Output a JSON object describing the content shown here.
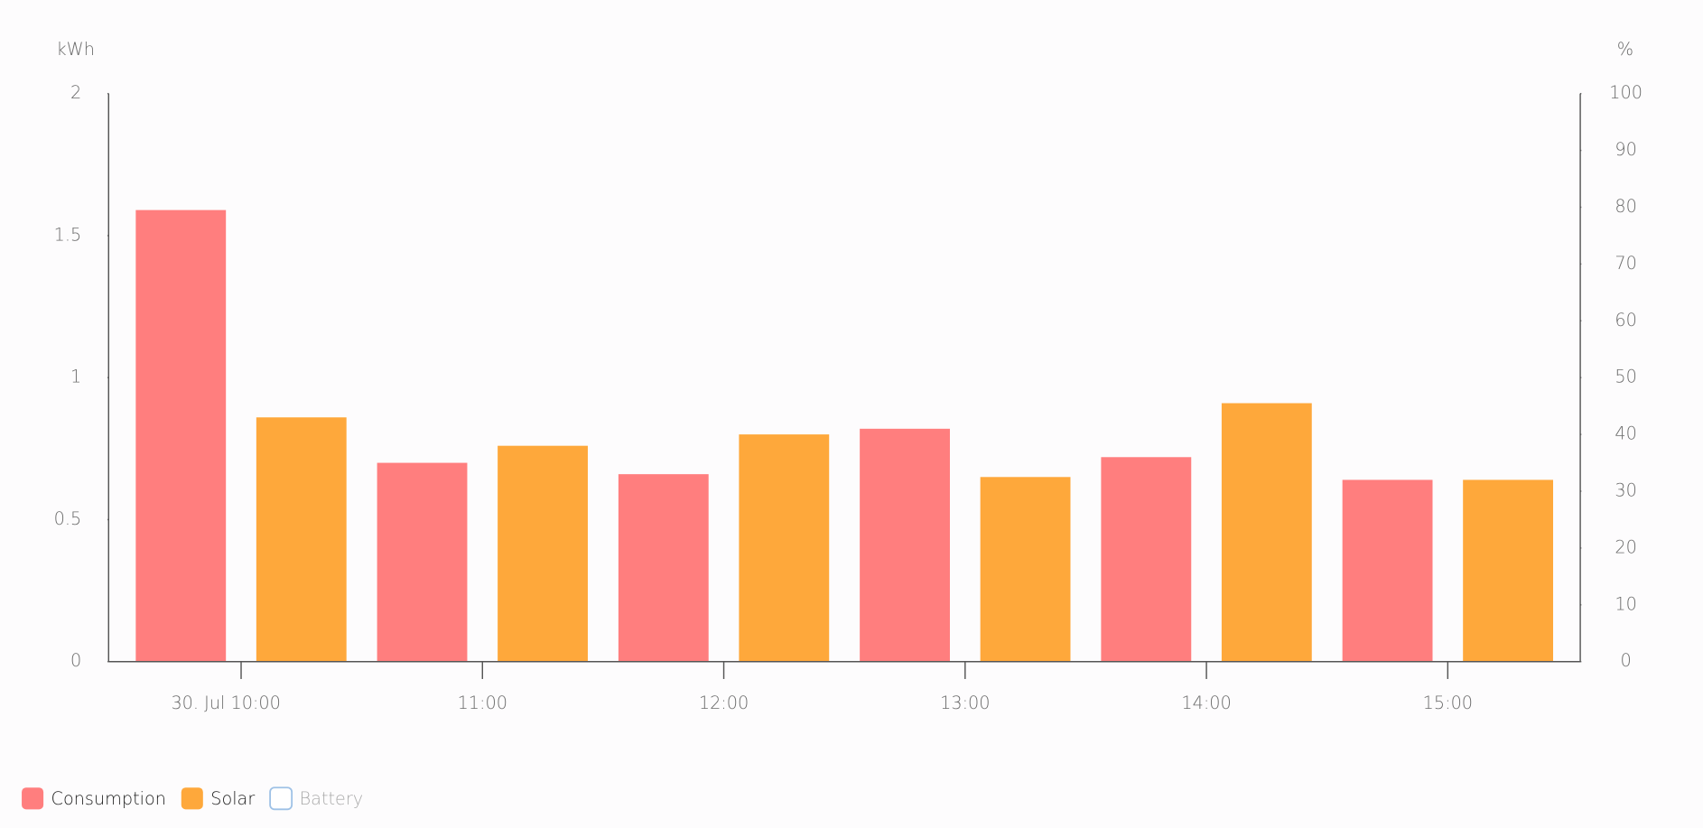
{
  "chart_data": {
    "type": "bar",
    "y_label": "kWh",
    "y2_label": "%",
    "categories": [
      "30. Jul 10:00",
      "11:00",
      "12:00",
      "13:00",
      "14:00",
      "15:00"
    ],
    "series": [
      {
        "name": "Consumption",
        "color": "#ff7e7e",
        "values": [
          1.59,
          0.7,
          0.66,
          0.82,
          0.72,
          0.64
        ]
      },
      {
        "name": "Solar",
        "color": "#fea83b",
        "values": [
          0.86,
          0.76,
          0.8,
          0.65,
          0.91,
          0.64
        ]
      },
      {
        "name": "Battery",
        "color": "#9ec1e6",
        "values": [
          null,
          null,
          null,
          null,
          null,
          null
        ],
        "axis": "y2",
        "visible": false
      }
    ],
    "ylim": [
      0,
      2
    ],
    "yticks": [
      0,
      0.5,
      1,
      1.5,
      2
    ],
    "y2lim": [
      0,
      100
    ],
    "y2ticks": [
      0,
      10,
      20,
      30,
      40,
      50,
      60,
      70,
      80,
      90,
      100
    ],
    "legend": "bottom-left"
  }
}
